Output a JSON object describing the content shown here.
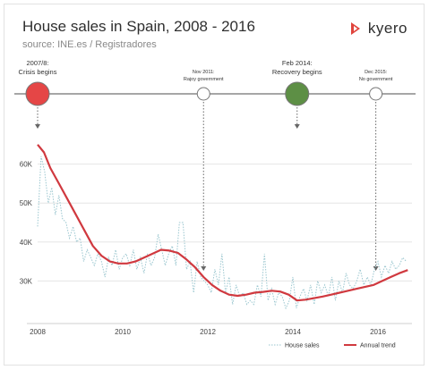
{
  "header": {
    "title": "House sales in Spain, 2008 - 2016",
    "subtitle": "source: INE.es / Registradores",
    "logo_text": "kyero"
  },
  "colors": {
    "trend": "#d0393f",
    "sales": "#9ac6cf",
    "timeline": "#888888",
    "red_marker": "#e54646",
    "green_marker": "#5d8f45",
    "grid": "#e5e5e5"
  },
  "events": [
    {
      "date": 2008.0,
      "lines": [
        "2007/8:",
        "Crisis begins"
      ],
      "marker": "red",
      "big": true
    },
    {
      "date": 2011.9,
      "lines": [
        "Nov 2011:",
        "Rajoy government"
      ],
      "marker": "white",
      "big": false
    },
    {
      "date": 2014.1,
      "lines": [
        "Feb 2014:",
        "Recovery begins"
      ],
      "marker": "green",
      "big": true
    },
    {
      "date": 2015.95,
      "lines": [
        "Dec 2015:",
        "No government"
      ],
      "marker": "white",
      "big": false
    }
  ],
  "chart_data": {
    "type": "line",
    "title": "House sales in Spain, 2008 - 2016",
    "xlim": [
      2008,
      2016.8
    ],
    "ylim": [
      20000,
      70000
    ],
    "x_ticks": [
      2008,
      2010,
      2012,
      2014,
      2016
    ],
    "x_tick_labels": [
      "2008",
      "2010",
      "2012",
      "2014",
      "2016"
    ],
    "y_ticks": [
      30000,
      40000,
      50000,
      60000
    ],
    "y_tick_labels": [
      "30K",
      "40K",
      "50K",
      "60K"
    ],
    "legend_position": "bottom-right",
    "series": [
      {
        "name": "House sales",
        "style": "dotted",
        "x": [
          2008.0,
          2008.083,
          2008.167,
          2008.25,
          2008.333,
          2008.417,
          2008.5,
          2008.583,
          2008.667,
          2008.75,
          2008.833,
          2008.917,
          2009.0,
          2009.083,
          2009.167,
          2009.25,
          2009.333,
          2009.417,
          2009.5,
          2009.583,
          2009.667,
          2009.75,
          2009.833,
          2009.917,
          2010.0,
          2010.083,
          2010.167,
          2010.25,
          2010.333,
          2010.417,
          2010.5,
          2010.583,
          2010.667,
          2010.75,
          2010.833,
          2010.917,
          2011.0,
          2011.083,
          2011.167,
          2011.25,
          2011.333,
          2011.417,
          2011.5,
          2011.583,
          2011.667,
          2011.75,
          2011.833,
          2011.917,
          2012.0,
          2012.083,
          2012.167,
          2012.25,
          2012.333,
          2012.417,
          2012.5,
          2012.583,
          2012.667,
          2012.75,
          2012.833,
          2012.917,
          2013.0,
          2013.083,
          2013.167,
          2013.25,
          2013.333,
          2013.417,
          2013.5,
          2013.583,
          2013.667,
          2013.75,
          2013.833,
          2013.917,
          2014.0,
          2014.083,
          2014.167,
          2014.25,
          2014.333,
          2014.417,
          2014.5,
          2014.583,
          2014.667,
          2014.75,
          2014.833,
          2014.917,
          2015.0,
          2015.083,
          2015.167,
          2015.25,
          2015.333,
          2015.417,
          2015.5,
          2015.583,
          2015.667,
          2015.75,
          2015.833,
          2015.917,
          2016.0,
          2016.083,
          2016.167,
          2016.25,
          2016.333,
          2016.417,
          2016.5,
          2016.583,
          2016.667
        ],
        "y": [
          44000,
          62000,
          58000,
          50000,
          54000,
          47000,
          52000,
          46000,
          45000,
          41000,
          44000,
          40000,
          41000,
          35000,
          38000,
          36000,
          34000,
          37000,
          35000,
          31000,
          36000,
          34000,
          38000,
          33000,
          36000,
          37000,
          34000,
          38000,
          33000,
          36000,
          32000,
          37000,
          34000,
          36000,
          42000,
          38000,
          34000,
          37000,
          39000,
          34000,
          45000,
          45000,
          33000,
          35000,
          27000,
          35000,
          31000,
          30000,
          29000,
          27000,
          33000,
          29000,
          37000,
          27000,
          31000,
          24000,
          29000,
          26000,
          27000,
          24000,
          25000,
          24000,
          29000,
          26000,
          37000,
          25000,
          28000,
          24000,
          27000,
          26000,
          23000,
          25000,
          31000,
          23000,
          26000,
          28000,
          25000,
          29000,
          24000,
          30000,
          27000,
          29000,
          26000,
          31000,
          25000,
          30000,
          27000,
          32000,
          29000,
          28000,
          30000,
          33000,
          29000,
          31000,
          29000,
          33000,
          35000,
          31000,
          34000,
          32000,
          35000,
          33000,
          34000,
          36000,
          35000
        ]
      },
      {
        "name": "Annual trend",
        "style": "solid",
        "x": [
          2008.0,
          2008.15,
          2008.3,
          2008.5,
          2008.7,
          2008.9,
          2009.1,
          2009.3,
          2009.5,
          2009.7,
          2009.9,
          2010.1,
          2010.3,
          2010.5,
          2010.7,
          2010.9,
          2011.1,
          2011.3,
          2011.5,
          2011.7,
          2011.9,
          2012.1,
          2012.3,
          2012.5,
          2012.7,
          2012.9,
          2013.1,
          2013.3,
          2013.5,
          2013.7,
          2013.9,
          2014.1,
          2014.3,
          2014.5,
          2014.7,
          2014.9,
          2015.1,
          2015.3,
          2015.5,
          2015.7,
          2015.9,
          2016.1,
          2016.3,
          2016.5,
          2016.7
        ],
        "y": [
          65000,
          63000,
          59000,
          55000,
          51000,
          47000,
          43000,
          39000,
          36500,
          35000,
          34500,
          34500,
          35000,
          36000,
          37000,
          38000,
          37800,
          37200,
          35500,
          33500,
          31000,
          29000,
          27500,
          26500,
          26200,
          26500,
          27000,
          27200,
          27500,
          27300,
          26500,
          25000,
          25200,
          25600,
          26000,
          26500,
          27000,
          27500,
          28000,
          28500,
          29000,
          30000,
          31000,
          32000,
          32800
        ]
      }
    ]
  }
}
